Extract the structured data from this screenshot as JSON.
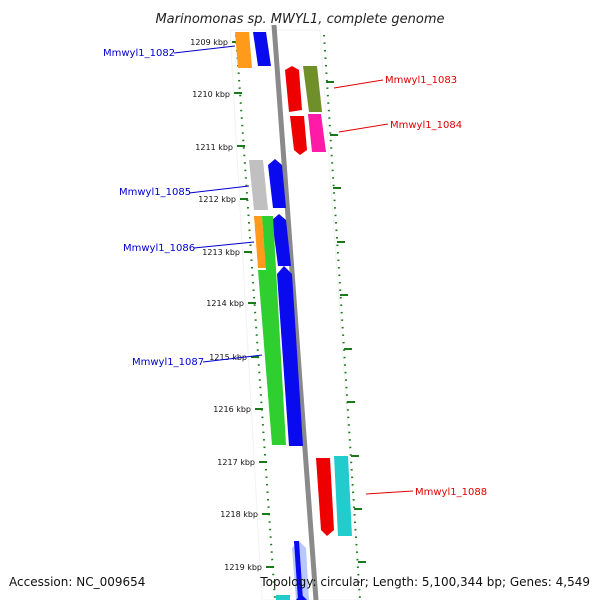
{
  "title": "Marinomonas sp. MWYL1, complete genome",
  "footer": {
    "accession": "Accession: NC_009654",
    "topology": "Topology: circular; Length: 5,100,344 bp; Genes: 4,549"
  },
  "ticks": [
    "1209 kbp",
    "1210 kbp",
    "1211 kbp",
    "1212 kbp",
    "1213 kbp",
    "1214 kbp",
    "1215 kbp",
    "1216 kbp",
    "1217 kbp",
    "1218 kbp",
    "1219 kbp"
  ],
  "genes": [
    {
      "name": "Mmwyl1_1082",
      "strand": "left",
      "label_color": "#0000cc"
    },
    {
      "name": "Mmwyl1_1083",
      "strand": "right",
      "label_color": "#e00000"
    },
    {
      "name": "Mmwyl1_1084",
      "strand": "right",
      "label_color": "#e00000"
    },
    {
      "name": "Mmwyl1_1085",
      "strand": "left",
      "label_color": "#0000cc"
    },
    {
      "name": "Mmwyl1_1086",
      "strand": "left",
      "label_color": "#0000cc"
    },
    {
      "name": "Mmwyl1_1087",
      "strand": "left",
      "label_color": "#0000cc"
    },
    {
      "name": "Mmwyl1_1088",
      "strand": "right",
      "label_color": "#e00000"
    }
  ],
  "colors": {
    "backbone": "#8a8a8a",
    "tick_green": "#1a7a1a",
    "orange": "#ff9a1a",
    "blue": "#0a0aee",
    "red": "#ee0000",
    "olive": "#6f8f2a",
    "magenta": "#ff1aa8",
    "gray": "#c0c0c0",
    "green": "#2ecf2e",
    "cyan": "#22cccc",
    "lightblue": "#b8c8ff"
  }
}
